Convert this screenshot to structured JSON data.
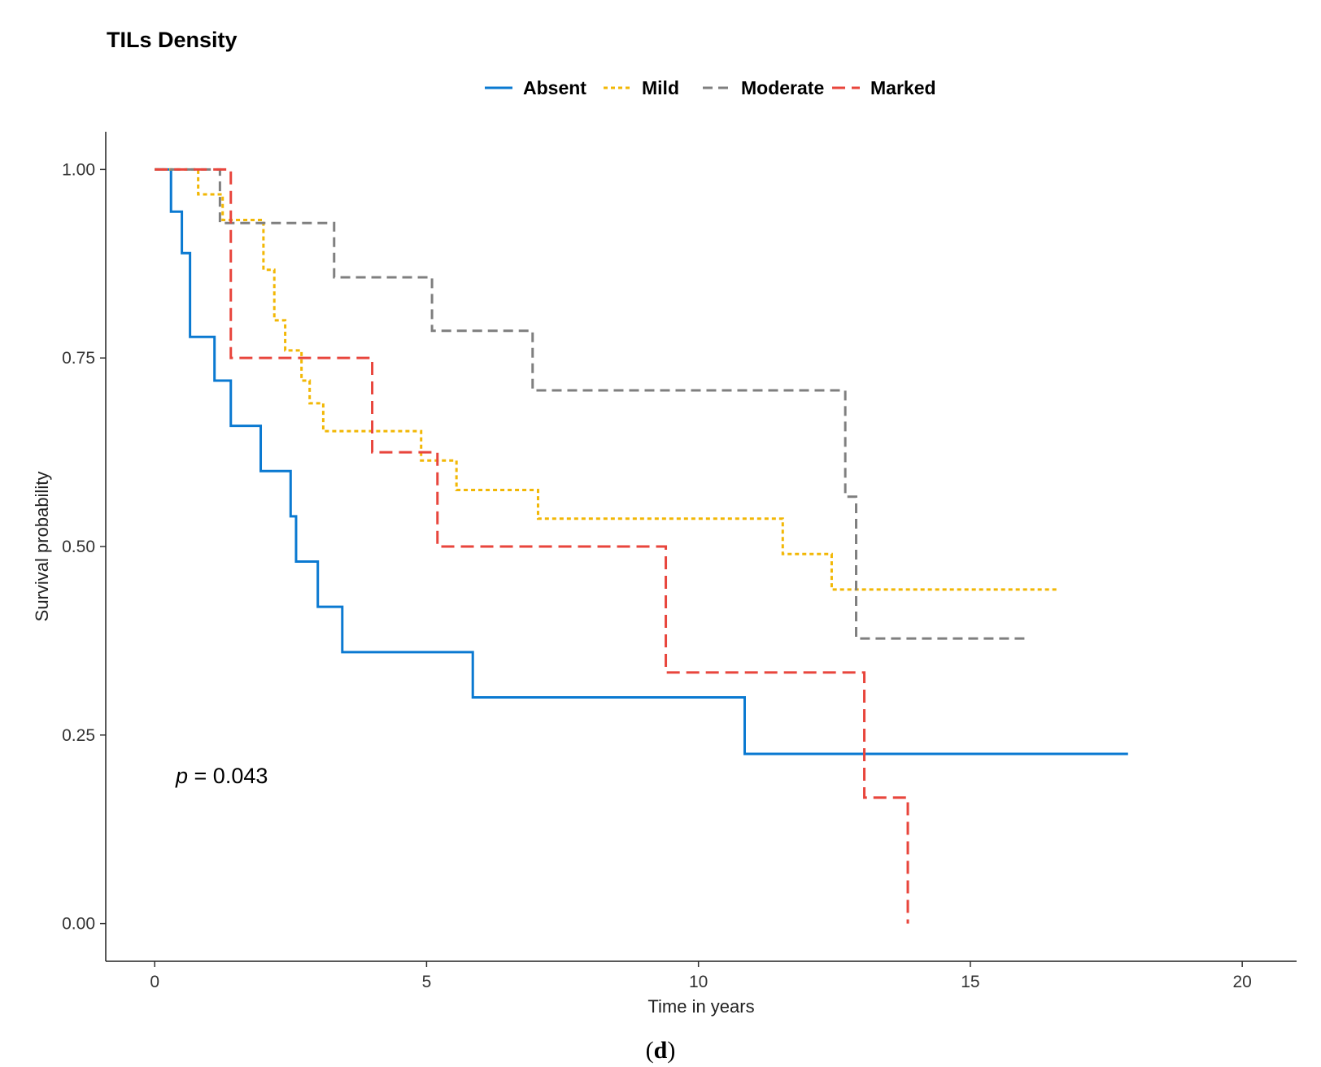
{
  "chart_data": {
    "type": "line",
    "title": "TILs Density",
    "xlabel": "Time in years",
    "ylabel": "Survival probability",
    "xlim": [
      -0.9,
      21.0
    ],
    "ylim": [
      -0.05,
      1.05
    ],
    "xticks": [
      0,
      5,
      10,
      15,
      20
    ],
    "yticks": [
      0.0,
      0.25,
      0.5,
      0.75,
      1.0
    ],
    "xtick_labels": [
      "0",
      "5",
      "10",
      "15",
      "20"
    ],
    "ytick_labels": [
      "0.00",
      "0.25",
      "0.50",
      "0.75",
      "1.00"
    ],
    "legend_position": "top",
    "annotation": {
      "prefix": "p",
      "text": " = 0.043"
    },
    "caption": {
      "open": "(",
      "letter": "d",
      "close": ")"
    },
    "series": [
      {
        "name": "Absent",
        "color": "#0a79d1",
        "dash": "solid",
        "x": [
          0,
          0.3,
          0.5,
          0.65,
          1.1,
          1.4,
          1.95,
          2.5,
          2.6,
          3.0,
          3.45,
          5.85,
          10.85,
          17.9
        ],
        "y": [
          1.0,
          0.944,
          0.889,
          0.778,
          0.72,
          0.66,
          0.6,
          0.54,
          0.48,
          0.42,
          0.36,
          0.3,
          0.225,
          0.225
        ]
      },
      {
        "name": "Mild",
        "color": "#f2b705",
        "dash": "dotted",
        "x": [
          0,
          0.8,
          1.25,
          1.4,
          2.0,
          2.2,
          2.4,
          2.7,
          2.85,
          3.1,
          4.9,
          5.55,
          7.05,
          11.55,
          12.45,
          16.6
        ],
        "y": [
          1.0,
          0.967,
          0.933,
          0.933,
          0.867,
          0.8,
          0.76,
          0.72,
          0.69,
          0.653,
          0.614,
          0.575,
          0.537,
          0.49,
          0.443,
          0.443
        ]
      },
      {
        "name": "Moderate",
        "color": "#7f7f7f",
        "dash": "dashed",
        "x": [
          0,
          1.2,
          3.3,
          5.1,
          6.95,
          12.7,
          12.9,
          16.0
        ],
        "y": [
          1.0,
          0.929,
          0.857,
          0.786,
          0.707,
          0.566,
          0.378,
          0.378
        ]
      },
      {
        "name": "Marked",
        "color": "#e8453c",
        "dash": "longdash",
        "x": [
          0,
          1.4,
          4.0,
          5.2,
          9.4,
          13.05,
          13.85
        ],
        "y": [
          1.0,
          0.75,
          0.625,
          0.5,
          0.333,
          0.167,
          0.0
        ]
      }
    ]
  }
}
